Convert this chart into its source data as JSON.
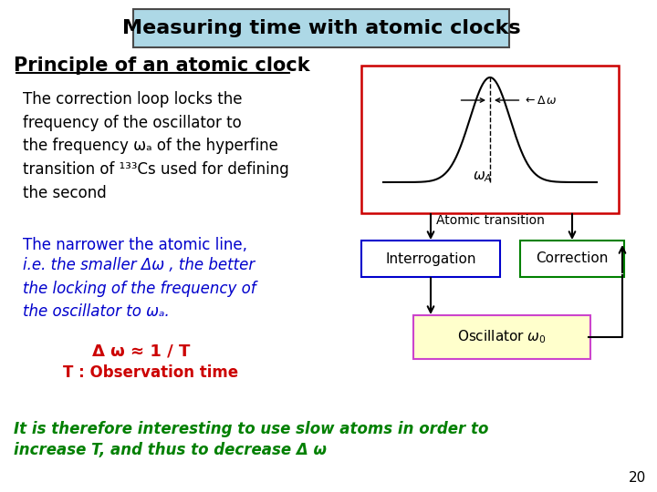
{
  "title": "Measuring time with atomic clocks",
  "subtitle": "Principle of an atomic clock",
  "bg_color": "#ffffff",
  "title_box_color": "#add8e6",
  "title_box_edge": "#4a4a4a",
  "body_text_color": "#000000",
  "blue_text_color": "#0000cc",
  "red_text_color": "#cc0000",
  "green_text_color": "#008000",
  "page_number": "20"
}
